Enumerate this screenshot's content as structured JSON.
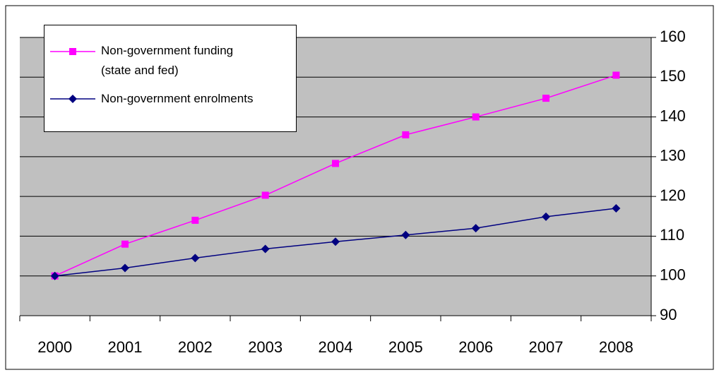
{
  "chart_data": {
    "type": "line",
    "categories": [
      "2000",
      "2001",
      "2002",
      "2003",
      "2004",
      "2005",
      "2006",
      "2007",
      "2008"
    ],
    "series": [
      {
        "name": "Non-government funding (state and fed)",
        "color": "#ff00ff",
        "marker": "square",
        "values": [
          100,
          108,
          114,
          120.3,
          128.3,
          135.5,
          140,
          144.7,
          150.5
        ]
      },
      {
        "name": "Non-government enrolments",
        "color": "#000080",
        "marker": "diamond",
        "values": [
          100,
          102,
          104.5,
          106.8,
          108.6,
          110.3,
          112,
          114.9,
          117
        ]
      }
    ],
    "ylim": [
      90,
      160
    ],
    "yticks": [
      90,
      100,
      110,
      120,
      130,
      140,
      150,
      160
    ],
    "grid": true,
    "y_axis_side": "right",
    "legend": "upper left"
  }
}
